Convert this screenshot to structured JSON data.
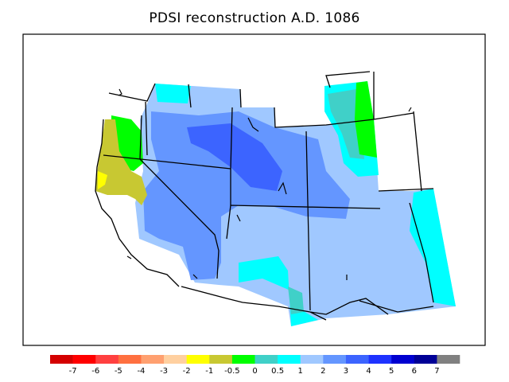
{
  "title": "PDSI reconstruction A.D. 1086",
  "colorbar": {
    "tick_labels": [
      "-7",
      "-6",
      "-5",
      "-4",
      "-3",
      "-2",
      "-1",
      "-0.5",
      "0",
      "0.5",
      "1",
      "2",
      "3",
      "4",
      "5",
      "6",
      "7"
    ],
    "colors": [
      "#d40000",
      "#ff0000",
      "#ff4040",
      "#ff7040",
      "#ffa070",
      "#ffd0a0",
      "#ffff00",
      "#c8c832",
      "#00ff00",
      "#40d0c8",
      "#00ffff",
      "#a0c8ff",
      "#6496ff",
      "#3c64ff",
      "#1e32ff",
      "#0000d0",
      "#000096",
      "#808080"
    ]
  },
  "map_colors": {
    "drought": "#c8c832",
    "dry": "#ffff00",
    "near_normal": "#00ff00",
    "slightly_wet": "#40d0c8",
    "wet": "#00ffff",
    "moderately_wet": "#a0c8ff",
    "very_wet": "#6496ff",
    "extremely_wet": "#3c64ff"
  }
}
